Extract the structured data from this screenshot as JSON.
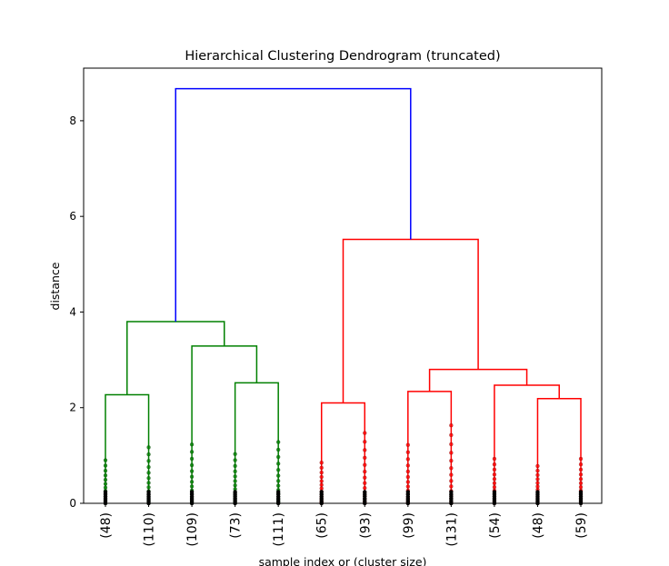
{
  "chart_data": {
    "type": "dendrogram",
    "title": "Hierarchical Clustering Dendrogram (truncated)",
    "xlabel": "sample index or (cluster size)",
    "ylabel": "distance",
    "ylim": [
      0,
      9.1
    ],
    "yticks": [
      0,
      2,
      4,
      6,
      8
    ],
    "grid": false,
    "leaves": [
      "(48)",
      "(110)",
      "(109)",
      "(73)",
      "(111)",
      "(65)",
      "(93)",
      "(99)",
      "(131)",
      "(54)",
      "(48)",
      "(59)"
    ],
    "links": [
      {
        "left": 0,
        "right": 1,
        "left_height": 0,
        "right_height": 0,
        "height": 2.27,
        "color": "#008000"
      },
      {
        "left": 3,
        "right": 4,
        "left_height": 0,
        "right_height": 0,
        "height": 2.52,
        "color": "#008000"
      },
      {
        "left": 2,
        "right": 3.5,
        "left_height": 0,
        "right_height": 2.52,
        "height": 3.29,
        "color": "#008000"
      },
      {
        "left": 0.5,
        "right": 2.75,
        "left_height": 2.27,
        "right_height": 3.29,
        "height": 3.8,
        "color": "#008000"
      },
      {
        "left": 5,
        "right": 6,
        "left_height": 0,
        "right_height": 0,
        "height": 2.1,
        "color": "#ff0000"
      },
      {
        "left": 7,
        "right": 8,
        "left_height": 0,
        "right_height": 0,
        "height": 2.34,
        "color": "#ff0000"
      },
      {
        "left": 10,
        "right": 11,
        "left_height": 0,
        "right_height": 0,
        "height": 2.19,
        "color": "#ff0000"
      },
      {
        "left": 9,
        "right": 10.5,
        "left_height": 0,
        "right_height": 2.19,
        "height": 2.47,
        "color": "#ff0000"
      },
      {
        "left": 7.5,
        "right": 9.75,
        "left_height": 2.34,
        "right_height": 2.47,
        "height": 2.8,
        "color": "#ff0000"
      },
      {
        "left": 5.5,
        "right": 8.625,
        "left_height": 2.1,
        "right_height": 2.8,
        "height": 5.52,
        "color": "#ff0000"
      },
      {
        "left": 1.625,
        "right": 7.0625,
        "left_height": 3.8,
        "right_height": 5.52,
        "height": 8.67,
        "color": "#0000ff"
      }
    ],
    "leaf_colors": [
      "#008000",
      "#008000",
      "#008000",
      "#008000",
      "#008000",
      "#ff0000",
      "#ff0000",
      "#ff0000",
      "#ff0000",
      "#ff0000",
      "#ff0000",
      "#ff0000"
    ],
    "leaf_max_heights": [
      0.9,
      1.17,
      1.23,
      1.03,
      1.28,
      0.85,
      1.47,
      1.22,
      1.63,
      0.93,
      0.78,
      0.93
    ]
  }
}
